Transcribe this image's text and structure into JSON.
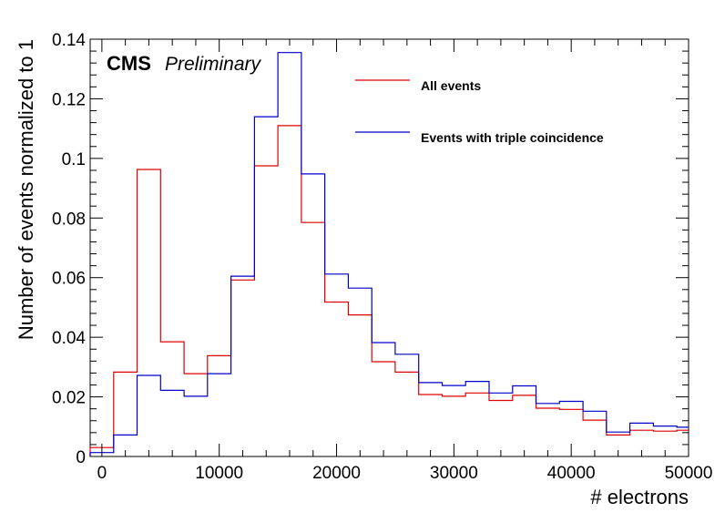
{
  "chart_data": {
    "type": "histogram",
    "xlabel": "# electrons",
    "ylabel": "Number of events normalized to 1",
    "xlim": [
      -1000,
      50000
    ],
    "ylim": [
      0,
      0.14
    ],
    "x_ticks": [
      0,
      10000,
      20000,
      30000,
      40000,
      50000
    ],
    "x_tick_labels": [
      "0",
      "10000",
      "20000",
      "30000",
      "40000",
      "50000"
    ],
    "y_ticks": [
      0,
      0.02,
      0.04,
      0.06,
      0.08,
      0.1,
      0.12,
      0.14
    ],
    "y_tick_labels": [
      "0",
      "0.02",
      "0.04",
      "0.06",
      "0.08",
      "0.1",
      "0.12",
      "0.14"
    ],
    "bin_edges": [
      -1000,
      1000,
      3000,
      5000,
      7000,
      9000,
      11000,
      13000,
      15000,
      17000,
      19000,
      21000,
      23000,
      25000,
      27000,
      29000,
      31000,
      33000,
      35000,
      37000,
      39000,
      41000,
      43000,
      45000,
      47000,
      49000,
      50000
    ],
    "series": [
      {
        "name": "All events",
        "color": "#e00000",
        "values": [
          0.003,
          0.0283,
          0.0963,
          0.0385,
          0.0278,
          0.0338,
          0.0592,
          0.0975,
          0.111,
          0.0785,
          0.0518,
          0.0475,
          0.0318,
          0.0283,
          0.0208,
          0.0202,
          0.0213,
          0.0188,
          0.0205,
          0.0162,
          0.0158,
          0.0122,
          0.0072,
          0.0088,
          0.0085,
          0.0088
        ]
      },
      {
        "name": "Events with triple coincidence",
        "color": "#0000c8",
        "values": [
          0.0013,
          0.0072,
          0.0272,
          0.0222,
          0.0202,
          0.0278,
          0.0605,
          0.114,
          0.1355,
          0.0948,
          0.0612,
          0.0565,
          0.0382,
          0.0343,
          0.0248,
          0.0238,
          0.0252,
          0.0213,
          0.0237,
          0.0178,
          0.0185,
          0.0152,
          0.0082,
          0.0112,
          0.0102,
          0.0098
        ]
      }
    ],
    "legend_position": "top-right",
    "annotation": {
      "bold": "CMS",
      "italic": "Preliminary"
    }
  }
}
